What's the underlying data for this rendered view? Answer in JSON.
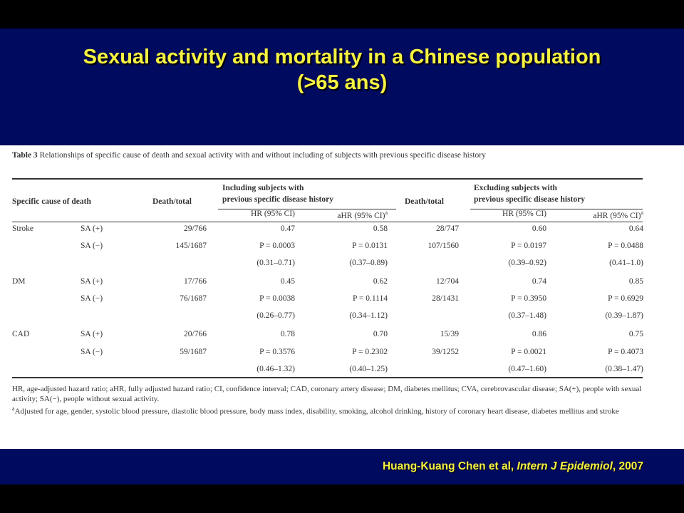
{
  "slide": {
    "title_line1": "Sexual activity and mortality in a Chinese population",
    "title_line2": "(>65 ans)",
    "citation_authors": "Huang-Kuang Chen et al, ",
    "citation_journal": "Intern J Epidemiol",
    "citation_year": ", 2007"
  },
  "table": {
    "caption_label": "Table 3",
    "caption_text": "Relationships of specific cause of death and sexual activity with and without including of subjects with previous specific disease history",
    "headers": {
      "cause": "Specific cause of death",
      "death_total_1": "Death/total",
      "including_line1": "Including subjects with",
      "including_line2": "previous specific disease history",
      "death_total_2": "Death/total",
      "excluding_line1": "Excluding subjects with",
      "excluding_line2": "previous specific disease history",
      "hr_1": "HR (95% CI)",
      "ahr_1": "aHR (95% CI)",
      "hr_2": "HR (95% CI)",
      "ahr_2": "aHR (95% CI)",
      "superscript": "a"
    },
    "rows": [
      {
        "cause": "Stroke",
        "group": "SA (+)",
        "dt1": "29/766",
        "hr1": "0.47",
        "ahr1": "0.58",
        "dt2": "28/747",
        "hr2": "0.60",
        "ahr2": "0.64"
      },
      {
        "cause": "",
        "group": "SA (−)",
        "dt1": "145/1687",
        "hr1": "P = 0.0003",
        "ahr1": "P = 0.0131",
        "dt2": "107/1560",
        "hr2": "P = 0.0197",
        "ahr2": "P = 0.0488"
      },
      {
        "cause": "",
        "group": "",
        "dt1": "",
        "hr1": "(0.31–0.71)",
        "ahr1": "(0.37–0.89)",
        "dt2": "",
        "hr2": "(0.39–0.92)",
        "ahr2": "(0.41–1.0)"
      },
      {
        "cause": "DM",
        "group": "SA (+)",
        "dt1": "17/766",
        "hr1": "0.45",
        "ahr1": "0.62",
        "dt2": "12/704",
        "hr2": "0.74",
        "ahr2": "0.85"
      },
      {
        "cause": "",
        "group": "SA (−)",
        "dt1": "76/1687",
        "hr1": "P = 0.0038",
        "ahr1": "P = 0.1114",
        "dt2": "28/1431",
        "hr2": "P = 0.3950",
        "ahr2": "P = 0.6929"
      },
      {
        "cause": "",
        "group": "",
        "dt1": "",
        "hr1": "(0.26–0.77)",
        "ahr1": "(0.34–1.12)",
        "dt2": "",
        "hr2": "(0.37–1.48)",
        "ahr2": "(0.39–1.87)"
      },
      {
        "cause": "CAD",
        "group": "SA (+)",
        "dt1": "20/766",
        "hr1": "0.78",
        "ahr1": "0.70",
        "dt2": "15/39",
        "hr2": "0.86",
        "ahr2": "0.75"
      },
      {
        "cause": "",
        "group": "SA (−)",
        "dt1": "59/1687",
        "hr1": "P = 0.3576",
        "ahr1": "P = 0.2302",
        "dt2": "39/1252",
        "hr2": "P = 0.0021",
        "ahr2": "P = 0.4073"
      },
      {
        "cause": "",
        "group": "",
        "dt1": "",
        "hr1": "(0.46–1.32)",
        "ahr1": "(0.40–1.25)",
        "dt2": "",
        "hr2": "(0.47–1.60)",
        "ahr2": "(0.38–1.47)"
      }
    ],
    "footnote_1": "HR, age-adjusted hazard ratio; aHR, fully adjusted hazard ratio; CI, confidence interval; CAD, coronary artery disease; DM, diabetes mellitus; CVA, cerebrovascular disease; SA(+), people with sexual activity; SA(−), people without sexual activity.",
    "footnote_2_marker": "a",
    "footnote_2": "Adjusted for age, gender, systolic blood pressure, diastolic blood pressure, body mass index, disability, smoking, alcohol drinking, history of coronary heart disease, diabetes mellitus and stroke"
  },
  "colors": {
    "slide_background": "#000a5e",
    "title": "#f5f242",
    "table_background": "#ffffff",
    "text": "#333333"
  }
}
